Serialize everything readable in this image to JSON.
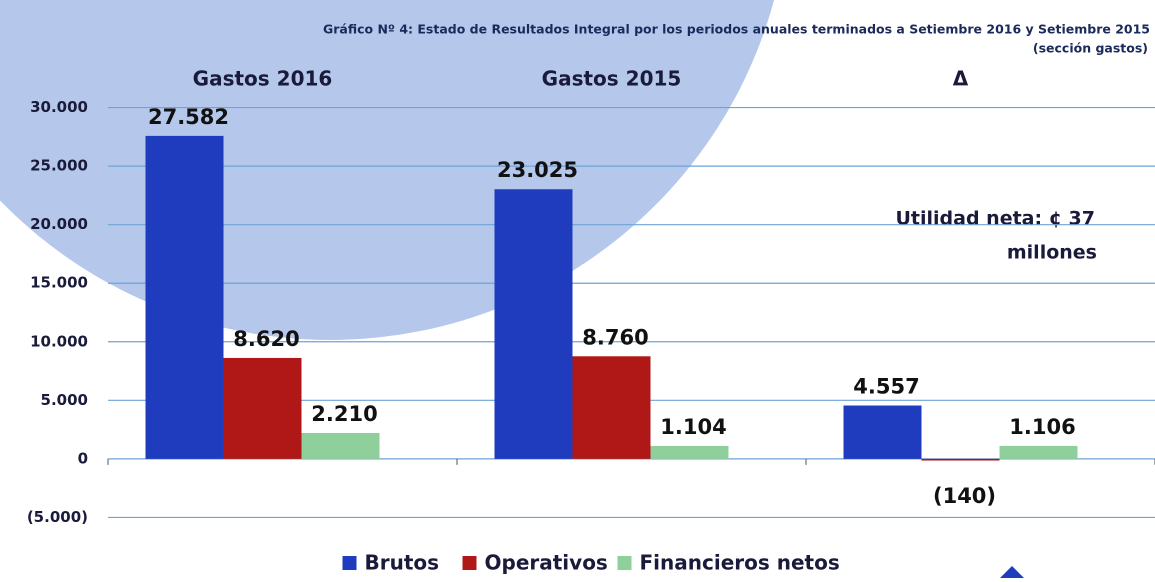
{
  "chart_data": {
    "type": "bar",
    "title": "Gráfico Nº 4: Estado de Resultados Integral por los periodos anuales terminados a Setiembre 2016 y Setiembre 2015",
    "subtitle": "(sección gastos)",
    "annotation": "Utilidad neta: ¢ 37",
    "annotation_2": "millones",
    "categories": [
      "Gastos 2016",
      "Gastos 2015",
      "Δ"
    ],
    "series": [
      {
        "name": "Brutos",
        "color": "#1f3cbf",
        "values": [
          27582,
          23025,
          4557
        ],
        "value_labels": [
          "27.582",
          "23.025",
          "4.557"
        ]
      },
      {
        "name": "Operativos",
        "color": "#b01818",
        "values": [
          8620,
          8760,
          -140
        ],
        "value_labels": [
          "8.620",
          "8.760",
          "(140)"
        ]
      },
      {
        "name": "Financieros netos",
        "color": "#8fcf9c",
        "values": [
          2210,
          1104,
          1106
        ],
        "value_labels": [
          "2.210",
          "1.104",
          "1.106"
        ]
      }
    ],
    "ylim": [
      -6500,
      31500
    ],
    "yticks": [
      {
        "value": -5000,
        "label": "(5.000)"
      },
      0,
      {
        "value": 5000,
        "label": "5.000"
      },
      {
        "value": 10000,
        "label": "10.000"
      },
      {
        "value": 15000,
        "label": "15.000"
      },
      {
        "value": 20000,
        "label": "20.000"
      },
      {
        "value": 25000,
        "label": "25.000"
      },
      {
        "value": 30000,
        "label": "30.000"
      }
    ],
    "grid": true,
    "legend": "bottom"
  }
}
